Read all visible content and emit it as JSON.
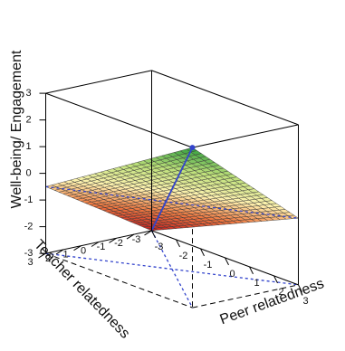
{
  "chart_data": {
    "type": "surface3d",
    "title": "",
    "xlabel": "Peer relatedness",
    "ylabel": "Teacher relatedness",
    "zlabel": "Well-being/ Engagement",
    "x_ticks": [
      "-3",
      "-2",
      "-1",
      "0",
      "1",
      "2",
      "3"
    ],
    "y_ticks": [
      "-3",
      "-2",
      "-1",
      "0",
      "1",
      "2",
      "3"
    ],
    "z_ticks": [
      "-3",
      "-2",
      "-1",
      "0",
      "1",
      "2",
      "3"
    ],
    "xlim": [
      -3,
      3
    ],
    "ylim": [
      -3,
      3
    ],
    "zlim": [
      -3,
      3
    ],
    "surface_corners": [
      {
        "x": 3,
        "y": 3,
        "z": 3
      },
      {
        "x": -3,
        "y": 3,
        "z": -0.5
      },
      {
        "x": -3,
        "y": -3,
        "z": -3
      },
      {
        "x": 3,
        "y": -3,
        "z": -0.5
      }
    ],
    "grid": true,
    "line_of_congruence_color": "#3344cc",
    "line_of_incongruence_color": "#3344cc",
    "colors": {
      "low": "#c81e1e",
      "mid_low": "#f07840",
      "mid": "#fff3b0",
      "mid_high": "#bde07a",
      "high": "#2f9e3c"
    }
  }
}
